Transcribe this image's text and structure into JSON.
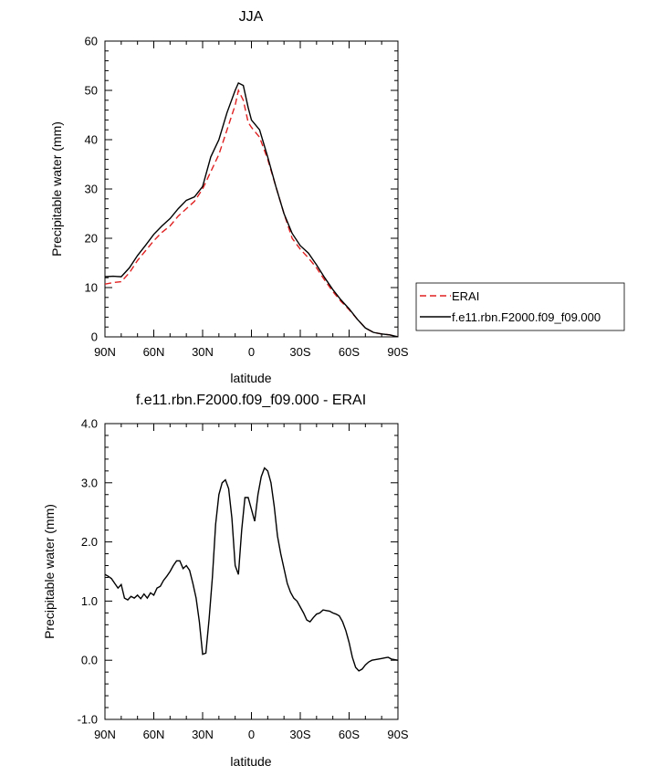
{
  "chart_data": [
    {
      "type": "line",
      "title": "JJA",
      "xlabel": "latitude",
      "ylabel": "Precipitable water (mm)",
      "xlim": [
        90,
        -90
      ],
      "ylim": [
        0,
        60
      ],
      "xticks": [
        90,
        60,
        30,
        0,
        -30,
        -60,
        -90
      ],
      "xtick_labels": [
        "90N",
        "60N",
        "30N",
        "0",
        "30S",
        "60S",
        "90S"
      ],
      "yticks": [
        0,
        10,
        20,
        30,
        40,
        50,
        60
      ],
      "ytick_labels": [
        "0",
        "10",
        "20",
        "30",
        "40",
        "50",
        "60"
      ],
      "legend_position": "outside-right",
      "series": [
        {
          "name": "ERAI",
          "style": "dashed",
          "color": "#e02020",
          "x": [
            90,
            85,
            80,
            75,
            70,
            65,
            60,
            55,
            50,
            45,
            40,
            35,
            30,
            25,
            20,
            15,
            10,
            8,
            5,
            2,
            0,
            -5,
            -10,
            -15,
            -20,
            -25,
            -30,
            -35,
            -40,
            -45,
            -50,
            -55,
            -60,
            -65,
            -70,
            -75,
            -80,
            -85,
            -90
          ],
          "y": [
            10.7,
            11.0,
            11.2,
            13.0,
            15.5,
            17.5,
            19.5,
            21.2,
            22.5,
            24.5,
            26.0,
            27.5,
            30.0,
            33.5,
            37.0,
            42.0,
            47.0,
            50.0,
            48.0,
            43.5,
            42.5,
            40.5,
            36.0,
            30.5,
            25.0,
            20.0,
            17.8,
            16.0,
            14.0,
            11.5,
            9.2,
            7.2,
            5.5,
            3.6,
            1.8,
            0.9,
            0.6,
            0.4,
            0.0
          ]
        },
        {
          "name": "f.e11.rbn.F2000.f09_f09.000",
          "style": "solid",
          "color": "#000000",
          "x": [
            90,
            85,
            80,
            75,
            70,
            65,
            60,
            55,
            50,
            45,
            40,
            35,
            30,
            25,
            20,
            15,
            10,
            8,
            5,
            2,
            0,
            -5,
            -10,
            -15,
            -20,
            -25,
            -30,
            -35,
            -40,
            -45,
            -50,
            -55,
            -60,
            -65,
            -70,
            -75,
            -80,
            -85,
            -90
          ],
          "y": [
            12.2,
            12.3,
            12.2,
            14.0,
            16.5,
            18.6,
            20.8,
            22.5,
            24.0,
            26.0,
            27.7,
            28.4,
            30.5,
            36.5,
            40.0,
            45.5,
            50.0,
            51.5,
            51.0,
            46.5,
            44.0,
            42.0,
            36.5,
            30.5,
            25.0,
            21.0,
            18.5,
            17.0,
            14.6,
            12.0,
            9.6,
            7.5,
            5.7,
            3.6,
            1.8,
            0.9,
            0.6,
            0.4,
            0.0
          ]
        }
      ]
    },
    {
      "type": "line",
      "title": "f.e11.rbn.F2000.f09_f09.000 - ERAI",
      "xlabel": "latitude",
      "ylabel": "Precipitable water (mm)",
      "xlim": [
        90,
        -90
      ],
      "ylim": [
        -1.0,
        4.0
      ],
      "xticks": [
        90,
        60,
        30,
        0,
        -30,
        -60,
        -90
      ],
      "xtick_labels": [
        "90N",
        "60N",
        "30N",
        "0",
        "30S",
        "60S",
        "90S"
      ],
      "yticks": [
        -1.0,
        0.0,
        1.0,
        2.0,
        3.0,
        4.0
      ],
      "ytick_labels": [
        "-1.0",
        "0.0",
        "1.0",
        "2.0",
        "3.0",
        "4.0"
      ],
      "series": [
        {
          "name": "f.e11.rbn.F2000.f09_f09.000 - ERAI",
          "style": "solid",
          "color": "#000000",
          "x": [
            90,
            88,
            86,
            84,
            82,
            80,
            78,
            76,
            74,
            72,
            70,
            68,
            66,
            64,
            62,
            60,
            58,
            56,
            54,
            52,
            50,
            48,
            46,
            44,
            42,
            40,
            38,
            36,
            34,
            32,
            30,
            28,
            26,
            24,
            22,
            20,
            18,
            16,
            14,
            12,
            10,
            8,
            6,
            4,
            2,
            0,
            -2,
            -4,
            -6,
            -8,
            -10,
            -12,
            -14,
            -16,
            -18,
            -20,
            -22,
            -24,
            -26,
            -28,
            -30,
            -32,
            -34,
            -36,
            -38,
            -40,
            -42,
            -44,
            -46,
            -48,
            -50,
            -52,
            -54,
            -56,
            -58,
            -60,
            -62,
            -64,
            -66,
            -68,
            -70,
            -72,
            -74,
            -76,
            -78,
            -80,
            -82,
            -84,
            -86,
            -88,
            -90
          ],
          "y": [
            1.45,
            1.42,
            1.38,
            1.3,
            1.22,
            1.28,
            1.05,
            1.02,
            1.08,
            1.05,
            1.1,
            1.04,
            1.12,
            1.05,
            1.14,
            1.1,
            1.22,
            1.25,
            1.35,
            1.42,
            1.5,
            1.6,
            1.68,
            1.68,
            1.55,
            1.6,
            1.52,
            1.3,
            1.05,
            0.65,
            0.1,
            0.12,
            0.7,
            1.4,
            2.3,
            2.8,
            3.0,
            3.05,
            2.9,
            2.4,
            1.6,
            1.45,
            2.2,
            2.75,
            2.75,
            2.55,
            2.35,
            2.8,
            3.1,
            3.25,
            3.2,
            3.0,
            2.6,
            2.1,
            1.8,
            1.55,
            1.3,
            1.15,
            1.05,
            1.0,
            0.9,
            0.8,
            0.68,
            0.65,
            0.72,
            0.78,
            0.8,
            0.85,
            0.84,
            0.83,
            0.8,
            0.78,
            0.75,
            0.65,
            0.5,
            0.3,
            0.05,
            -0.12,
            -0.18,
            -0.15,
            -0.08,
            -0.03,
            0.0,
            0.01,
            0.02,
            0.03,
            0.04,
            0.05,
            0.02,
            0.01,
            0.0
          ]
        }
      ]
    }
  ]
}
